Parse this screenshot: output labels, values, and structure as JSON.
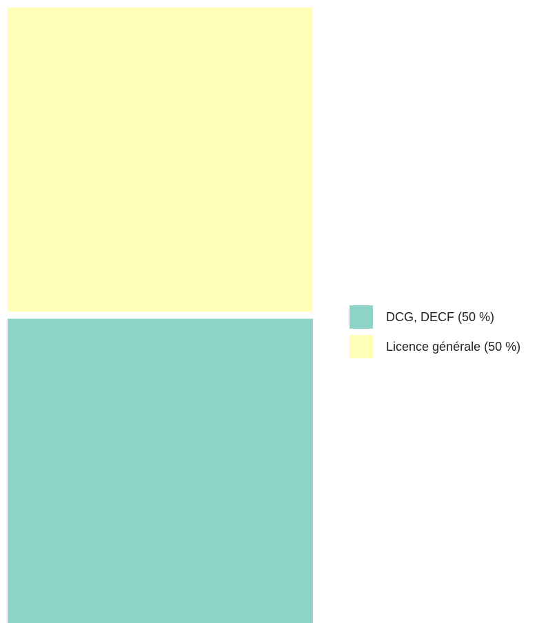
{
  "chart_data": {
    "type": "treemap",
    "title": "",
    "items": [
      {
        "label": "DCG, DECF (50 %)",
        "value": 50,
        "color": "#8fd4c8"
      },
      {
        "label": "Licence générale (50 %)",
        "value": 50,
        "color": "#ffffb8"
      }
    ],
    "legend": {
      "position": "right"
    }
  }
}
